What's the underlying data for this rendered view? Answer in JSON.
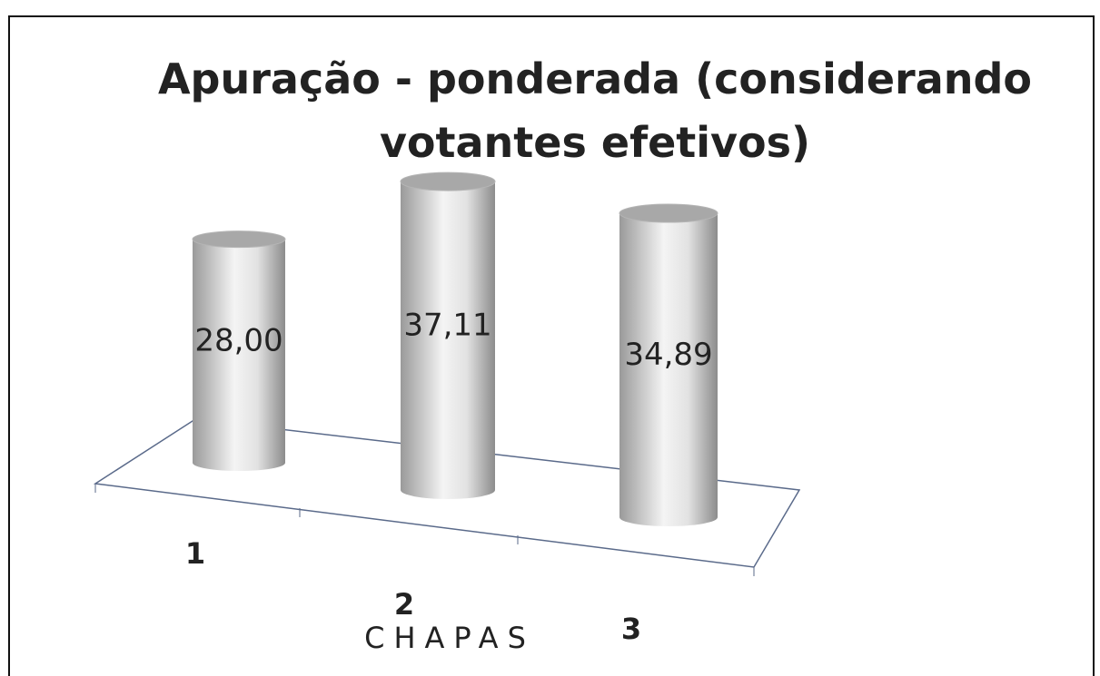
{
  "chart_data": {
    "type": "bar3d",
    "title": "Apuração - ponderada (considerando votantes efetivos)",
    "categories": [
      "1",
      "2",
      "3"
    ],
    "values": [
      28.0,
      37.11,
      34.89
    ],
    "value_labels": [
      "28,00",
      "37,11",
      "34,89"
    ],
    "xlabel": "CHAPAS",
    "color": "#d9d9d9"
  }
}
